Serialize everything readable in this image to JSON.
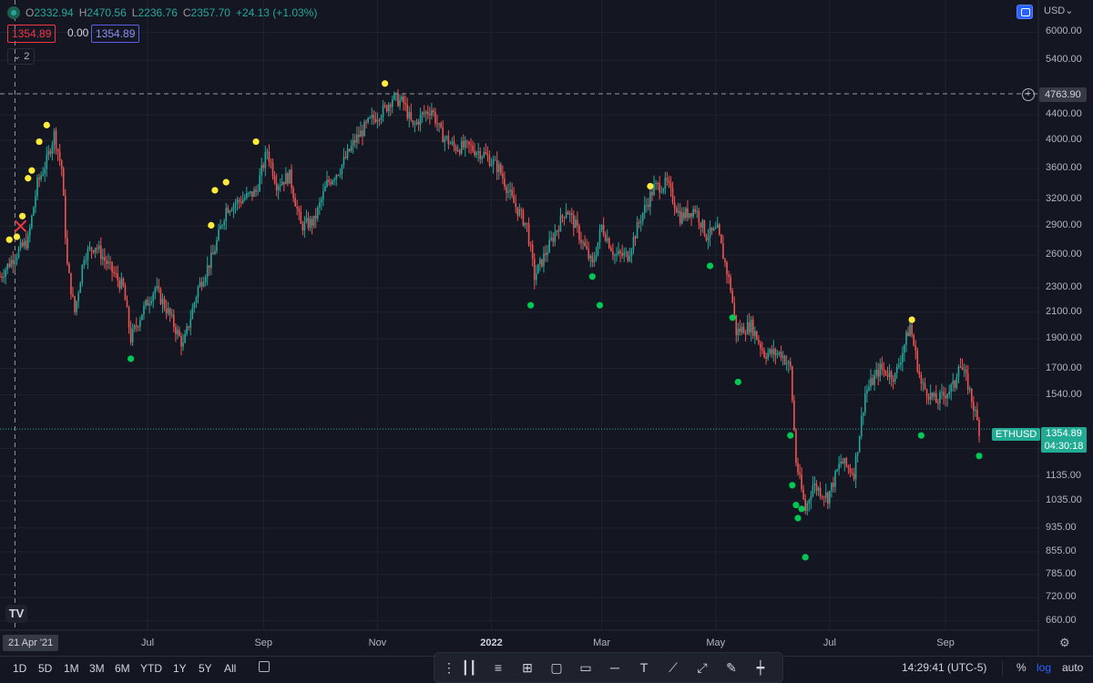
{
  "legend": {
    "open_label": "O",
    "open": "2332.94",
    "high_label": "H",
    "high": "2470.56",
    "low_label": "L",
    "low": "2236.76",
    "close_label": "C",
    "close": "2357.70",
    "change": "+24.13 (+1.03%)"
  },
  "indicators": {
    "value_red": "1354.89",
    "value_zero": "0.00",
    "value_blue": "1354.89",
    "collapse_count": "2"
  },
  "currency": "USD",
  "crosshair": {
    "date": "21 Apr '21",
    "price": "4763.90"
  },
  "symbol": {
    "name": "ETHUSD",
    "price": "1354.89",
    "countdown": "04:30:18"
  },
  "chart_data": {
    "type": "candlestick",
    "symbol": "ETHUSD",
    "y_scale": "log",
    "ylim": [
      620,
      6500
    ],
    "y_ticks": [
      6000,
      5400,
      4400,
      4000,
      3600,
      3200,
      2900,
      2600,
      2300,
      2100,
      1900,
      1700,
      1540,
      1260,
      1135,
      1035,
      935,
      855,
      785,
      720,
      660
    ],
    "y_tick_labels": [
      "6000.00",
      "5400.00",
      "4400.00",
      "4000.00",
      "3600.00",
      "3200.00",
      "2900.00",
      "2600.00",
      "2300.00",
      "2100.00",
      "1900.00",
      "1700.00",
      "1540.00",
      "1260.00",
      "1135.00",
      "1035.00",
      "935.00",
      "855.00",
      "785.00",
      "720.00",
      "660.00"
    ],
    "x_tick_labels": [
      "Jul",
      "Sep",
      "Nov",
      "2022",
      "Mar",
      "May",
      "Jul",
      "Sep"
    ],
    "x_tick_dates": [
      "2021-07-01",
      "2021-09-01",
      "2021-11-01",
      "2022-01-01",
      "2022-03-01",
      "2022-05-01",
      "2022-07-01",
      "2022-09-01"
    ],
    "x_range": [
      "2021-04-13",
      "2022-09-19"
    ],
    "close_path": [
      [
        "2021-04-13",
        2400
      ],
      [
        "2021-04-21",
        2600
      ],
      [
        "2021-04-28",
        2750
      ],
      [
        "2021-05-03",
        3400
      ],
      [
        "2021-05-08",
        3700
      ],
      [
        "2021-05-12",
        4100
      ],
      [
        "2021-05-16",
        3600
      ],
      [
        "2021-05-19",
        2500
      ],
      [
        "2021-05-23",
        2100
      ],
      [
        "2021-05-28",
        2600
      ],
      [
        "2021-06-03",
        2700
      ],
      [
        "2021-06-10",
        2500
      ],
      [
        "2021-06-18",
        2300
      ],
      [
        "2021-06-22",
        1900
      ],
      [
        "2021-06-28",
        2100
      ],
      [
        "2021-07-05",
        2300
      ],
      [
        "2021-07-12",
        2100
      ],
      [
        "2021-07-20",
        1850
      ],
      [
        "2021-07-28",
        2300
      ],
      [
        "2021-08-05",
        2600
      ],
      [
        "2021-08-12",
        3100
      ],
      [
        "2021-08-20",
        3200
      ],
      [
        "2021-08-28",
        3300
      ],
      [
        "2021-09-03",
        3850
      ],
      [
        "2021-09-08",
        3400
      ],
      [
        "2021-09-15",
        3500
      ],
      [
        "2021-09-21",
        2900
      ],
      [
        "2021-09-28",
        2950
      ],
      [
        "2021-10-05",
        3400
      ],
      [
        "2021-10-12",
        3600
      ],
      [
        "2021-10-20",
        4000
      ],
      [
        "2021-10-28",
        4300
      ],
      [
        "2021-11-05",
        4500
      ],
      [
        "2021-11-09",
        4700
      ],
      [
        "2021-11-15",
        4600
      ],
      [
        "2021-11-20",
        4200
      ],
      [
        "2021-11-25",
        4400
      ],
      [
        "2021-11-30",
        4500
      ],
      [
        "2021-12-05",
        4100
      ],
      [
        "2021-12-12",
        3900
      ],
      [
        "2021-12-20",
        3900
      ],
      [
        "2021-12-28",
        3800
      ],
      [
        "2022-01-05",
        3600
      ],
      [
        "2022-01-12",
        3200
      ],
      [
        "2022-01-20",
        2900
      ],
      [
        "2022-01-24",
        2400
      ],
      [
        "2022-02-01",
        2700
      ],
      [
        "2022-02-10",
        3100
      ],
      [
        "2022-02-15",
        2900
      ],
      [
        "2022-02-24",
        2500
      ],
      [
        "2022-03-01",
        2900
      ],
      [
        "2022-03-08",
        2600
      ],
      [
        "2022-03-15",
        2600
      ],
      [
        "2022-03-22",
        3000
      ],
      [
        "2022-03-29",
        3350
      ],
      [
        "2022-04-05",
        3400
      ],
      [
        "2022-04-12",
        3000
      ],
      [
        "2022-04-20",
        3100
      ],
      [
        "2022-04-26",
        2800
      ],
      [
        "2022-05-02",
        2850
      ],
      [
        "2022-05-09",
        2300
      ],
      [
        "2022-05-12",
        1950
      ],
      [
        "2022-05-20",
        2000
      ],
      [
        "2022-05-27",
        1800
      ],
      [
        "2022-06-05",
        1800
      ],
      [
        "2022-06-10",
        1700
      ],
      [
        "2022-06-13",
        1200
      ],
      [
        "2022-06-18",
        1000
      ],
      [
        "2022-06-22",
        1100
      ],
      [
        "2022-06-30",
        1050
      ],
      [
        "2022-07-07",
        1200
      ],
      [
        "2022-07-14",
        1150
      ],
      [
        "2022-07-20",
        1550
      ],
      [
        "2022-07-28",
        1700
      ],
      [
        "2022-08-05",
        1650
      ],
      [
        "2022-08-13",
        2000
      ],
      [
        "2022-08-19",
        1600
      ],
      [
        "2022-08-27",
        1500
      ],
      [
        "2022-09-06",
        1600
      ],
      [
        "2022-09-08",
        1750
      ],
      [
        "2022-09-13",
        1600
      ],
      [
        "2022-09-19",
        1354.89
      ]
    ],
    "high_markers": [
      [
        "2021-04-18",
        2700
      ],
      [
        "2021-04-22",
        2730
      ],
      [
        "2021-04-25",
        2950
      ],
      [
        "2021-04-28",
        3400
      ],
      [
        "2021-04-30",
        3500
      ],
      [
        "2021-05-04",
        3900
      ],
      [
        "2021-05-08",
        4150
      ],
      [
        "2021-08-04",
        2850
      ],
      [
        "2021-08-06",
        3250
      ],
      [
        "2021-08-12",
        3350
      ],
      [
        "2021-08-28",
        3900
      ],
      [
        "2021-11-05",
        4850
      ],
      [
        "2022-03-27",
        3300
      ],
      [
        "2022-08-14",
        2000
      ]
    ],
    "low_markers": [
      [
        "2021-06-22",
        1800
      ],
      [
        "2022-01-22",
        2200
      ],
      [
        "2022-02-24",
        2450
      ],
      [
        "2022-02-28",
        2200
      ],
      [
        "2022-04-28",
        2550
      ],
      [
        "2022-05-10",
        2100
      ],
      [
        "2022-05-13",
        1650
      ],
      [
        "2022-06-10",
        1350
      ],
      [
        "2022-06-11",
        1120
      ],
      [
        "2022-06-13",
        1040
      ],
      [
        "2022-06-14",
        990
      ],
      [
        "2022-06-16",
        1025
      ],
      [
        "2022-06-18",
        855
      ],
      [
        "2022-08-19",
        1350
      ],
      [
        "2022-09-19",
        1250
      ]
    ],
    "sell_signal": [
      "2021-04-24",
      2900
    ],
    "crosshair": [
      "2021-04-21",
      4763.9
    ],
    "last_price": 1354.89
  },
  "toolbar": {
    "ranges": [
      "1D",
      "5D",
      "1M",
      "3M",
      "6M",
      "YTD",
      "1Y",
      "5Y",
      "All"
    ],
    "time": "14:29:41 (UTC-5)",
    "percent": "%",
    "log": "log",
    "auto": "auto",
    "drawing_tools": [
      "candles-icon",
      "long-position-icon",
      "crosshair-box-icon",
      "rectangle-icon",
      "comment-icon",
      "horizontal-line-icon",
      "text-icon",
      "trendline-icon",
      "path-icon",
      "bar-icon"
    ]
  },
  "colors": {
    "up": "#26a69a",
    "down": "#ef5350",
    "high_marker": "#ffeb3b",
    "low_marker": "#00c853",
    "accent": "#2962ff",
    "badge": "#22ab94"
  }
}
